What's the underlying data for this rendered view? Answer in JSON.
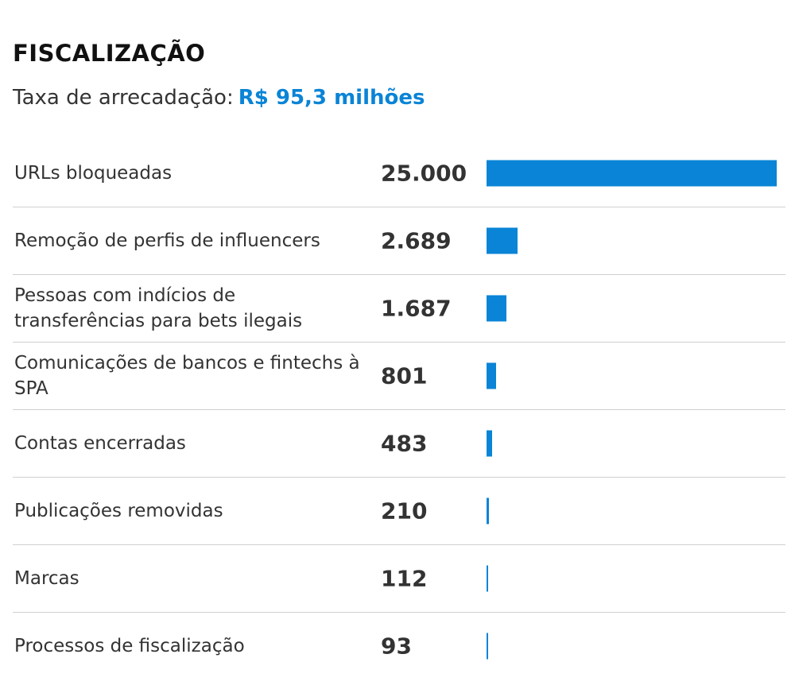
{
  "title": "FISCALIZAÇÃO",
  "subtitle": {
    "label": "Taxa de arrecadação:",
    "value": "R$ 95,3 milhões"
  },
  "colors": {
    "accent": "#0a84d6",
    "text": "#333333",
    "divider": "#cfcfcf"
  },
  "chart_data": {
    "type": "bar",
    "orientation": "horizontal",
    "title": "FISCALIZAÇÃO",
    "subtitle": "Taxa de arrecadação: R$ 95,3 milhões",
    "categories": [
      "URLs bloqueadas",
      "Remoção de perfis de influencers",
      "Pessoas com indícios de transferências para bets ilegais",
      "Comunicações de bancos e fintechs à SPA",
      "Contas encerradas",
      "Publicações removidas",
      "Marcas",
      "Processos de fiscalização"
    ],
    "values": [
      25000,
      2689,
      1687,
      801,
      483,
      210,
      112,
      93
    ],
    "value_labels": [
      "25.000",
      "2.689",
      "1.687",
      "801",
      "483",
      "210",
      "112",
      "93"
    ],
    "xlabel": "",
    "ylabel": "",
    "xlim": [
      0,
      25000
    ],
    "grid": false,
    "legend": "none"
  }
}
